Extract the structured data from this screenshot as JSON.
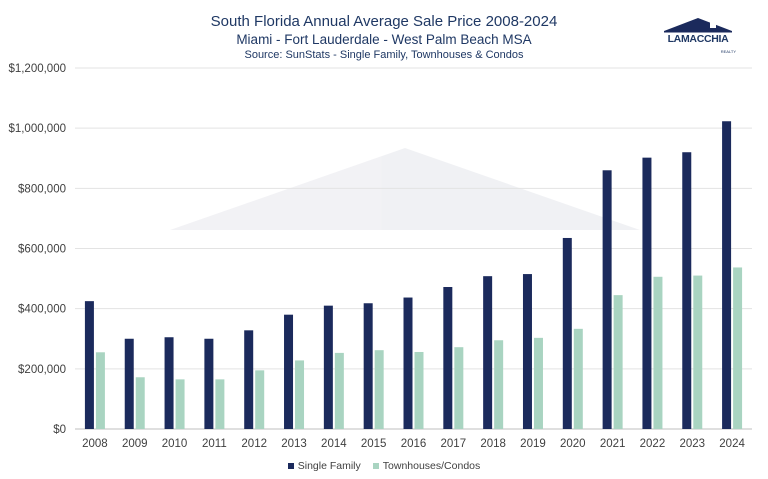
{
  "brand": {
    "logo_text": "LAMACCHIA",
    "logo_sub": "REALTY",
    "navy": "#1b2a5c",
    "green": "#a9d4c1"
  },
  "chart_data": {
    "type": "bar",
    "title": "South Florida Annual Average Sale Price 2008-2024",
    "subtitle": "Miami - Fort Lauderdale - West Palm Beach MSA",
    "source": "Source: SunStats - Single Family, Townhouses & Condos",
    "xlabel": "",
    "ylabel": "",
    "ylim": [
      0,
      1200000
    ],
    "yticks": [
      "$0",
      "$200,000",
      "$400,000",
      "$600,000",
      "$800,000",
      "$1,000,000",
      "$1,200,000"
    ],
    "categories": [
      "2008",
      "2009",
      "2010",
      "2011",
      "2012",
      "2013",
      "2014",
      "2015",
      "2016",
      "2017",
      "2018",
      "2019",
      "2020",
      "2021",
      "2022",
      "2023",
      "2024"
    ],
    "series": [
      {
        "name": "Single Family",
        "color": "#1b2a5c",
        "values": [
          425000,
          300000,
          305000,
          300000,
          328000,
          380000,
          410000,
          418000,
          437000,
          472000,
          508000,
          515000,
          635000,
          860000,
          902000,
          920000,
          1023000
        ]
      },
      {
        "name": "Townhouses/Condos",
        "color": "#a9d4c1",
        "values": [
          255000,
          172000,
          165000,
          165000,
          195000,
          228000,
          253000,
          262000,
          256000,
          272000,
          295000,
          303000,
          333000,
          445000,
          506000,
          510000,
          537000
        ]
      }
    ],
    "grid": true,
    "legend_position": "bottom"
  }
}
